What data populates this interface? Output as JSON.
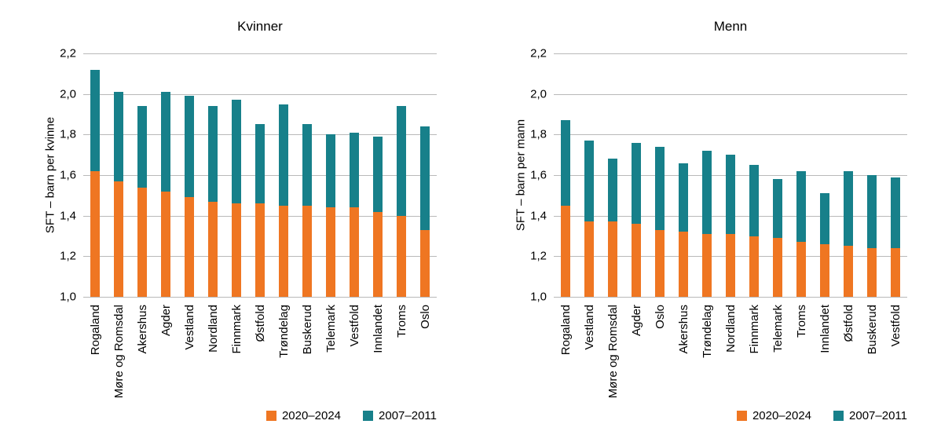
{
  "chart_data": [
    {
      "type": "bar",
      "title": "Kvinner",
      "ylabel": "SFT – barn per kvinne",
      "xlabel": "",
      "ylim": [
        1.0,
        2.2
      ],
      "ytick_step": 0.2,
      "ytick_labels": [
        "1,0",
        "1,2",
        "1,4",
        "1,6",
        "1,8",
        "2,0",
        "2,2"
      ],
      "grid": true,
      "legend_position": "bottom-right",
      "categories": [
        "Rogaland",
        "Møre og Romsdal",
        "Akershus",
        "Agder",
        "Vestland",
        "Nordland",
        "Finnmark",
        "Østfold",
        "Trøndelag",
        "Buskerud",
        "Telemark",
        "Vestfold",
        "Innlandet",
        "Troms",
        "Oslo"
      ],
      "series": [
        {
          "name": "2020–2024",
          "color": "#EF7622",
          "values": [
            1.62,
            1.57,
            1.54,
            1.52,
            1.49,
            1.47,
            1.46,
            1.46,
            1.45,
            1.45,
            1.44,
            1.44,
            1.42,
            1.4,
            1.33
          ]
        },
        {
          "name": "2007–2011",
          "color": "#17808A",
          "values": [
            2.12,
            2.01,
            1.94,
            2.01,
            1.99,
            1.94,
            1.97,
            1.85,
            1.95,
            1.85,
            1.8,
            1.81,
            1.79,
            1.94,
            1.84
          ]
        }
      ]
    },
    {
      "type": "bar",
      "title": "Menn",
      "ylabel": "SFT – barn per mann",
      "xlabel": "",
      "ylim": [
        1.0,
        2.2
      ],
      "ytick_step": 0.2,
      "ytick_labels": [
        "1,0",
        "1,2",
        "1,4",
        "1,6",
        "1,8",
        "2,0",
        "2,2"
      ],
      "grid": true,
      "legend_position": "bottom-right",
      "categories": [
        "Rogaland",
        "Vestland",
        "Møre og Romsdal",
        "Agder",
        "Oslo",
        "Akershus",
        "Trøndelag",
        "Nordland",
        "Finnmark",
        "Telemark",
        "Troms",
        "Innlandet",
        "Østfold",
        "Buskerud",
        "Vestfold"
      ],
      "series": [
        {
          "name": "2020–2024",
          "color": "#EF7622",
          "values": [
            1.45,
            1.37,
            1.37,
            1.36,
            1.33,
            1.32,
            1.31,
            1.31,
            1.3,
            1.29,
            1.27,
            1.26,
            1.25,
            1.24,
            1.24
          ]
        },
        {
          "name": "2007–2011",
          "color": "#17808A",
          "values": [
            1.87,
            1.77,
            1.68,
            1.76,
            1.74,
            1.66,
            1.72,
            1.7,
            1.65,
            1.58,
            1.62,
            1.51,
            1.62,
            1.6,
            1.59
          ]
        }
      ]
    }
  ],
  "colors": {
    "bar_2020_2024": "#EF7622",
    "bar_2007_2011": "#17808A",
    "gridline": "#b9b9b9",
    "text": "#000000"
  }
}
